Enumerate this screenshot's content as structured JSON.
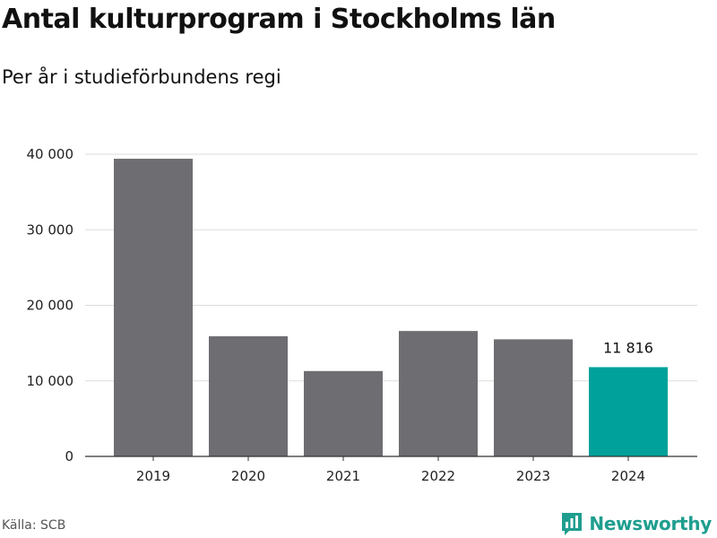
{
  "title": "Antal kulturprogram i Stockholms län",
  "subtitle": "Per år i studieförbundens regi",
  "source": "Källa: SCB",
  "brand": {
    "name": "Newsworthy",
    "icon": "newsworthy-logo-icon",
    "color": "#1f9e8f"
  },
  "colors": {
    "bar": "#6e6d72",
    "highlight": "#00a19a",
    "grid": "#dddddd",
    "axis": "#333333"
  },
  "chart_data": {
    "type": "bar",
    "title": "Antal kulturprogram i Stockholms län",
    "subtitle": "Per år i studieförbundens regi",
    "categories": [
      "2019",
      "2020",
      "2021",
      "2022",
      "2023",
      "2024"
    ],
    "values": [
      39400,
      15900,
      11300,
      16600,
      15500,
      11816
    ],
    "highlight_index": 5,
    "data_labels": [
      {
        "index": 5,
        "text": "11 816"
      }
    ],
    "ylim": [
      0,
      40000
    ],
    "yticks": [
      0,
      10000,
      20000,
      30000,
      40000
    ],
    "ytick_labels": [
      "0",
      "10 000",
      "20 000",
      "30 000",
      "40 000"
    ],
    "grid": true,
    "legend": "none"
  }
}
